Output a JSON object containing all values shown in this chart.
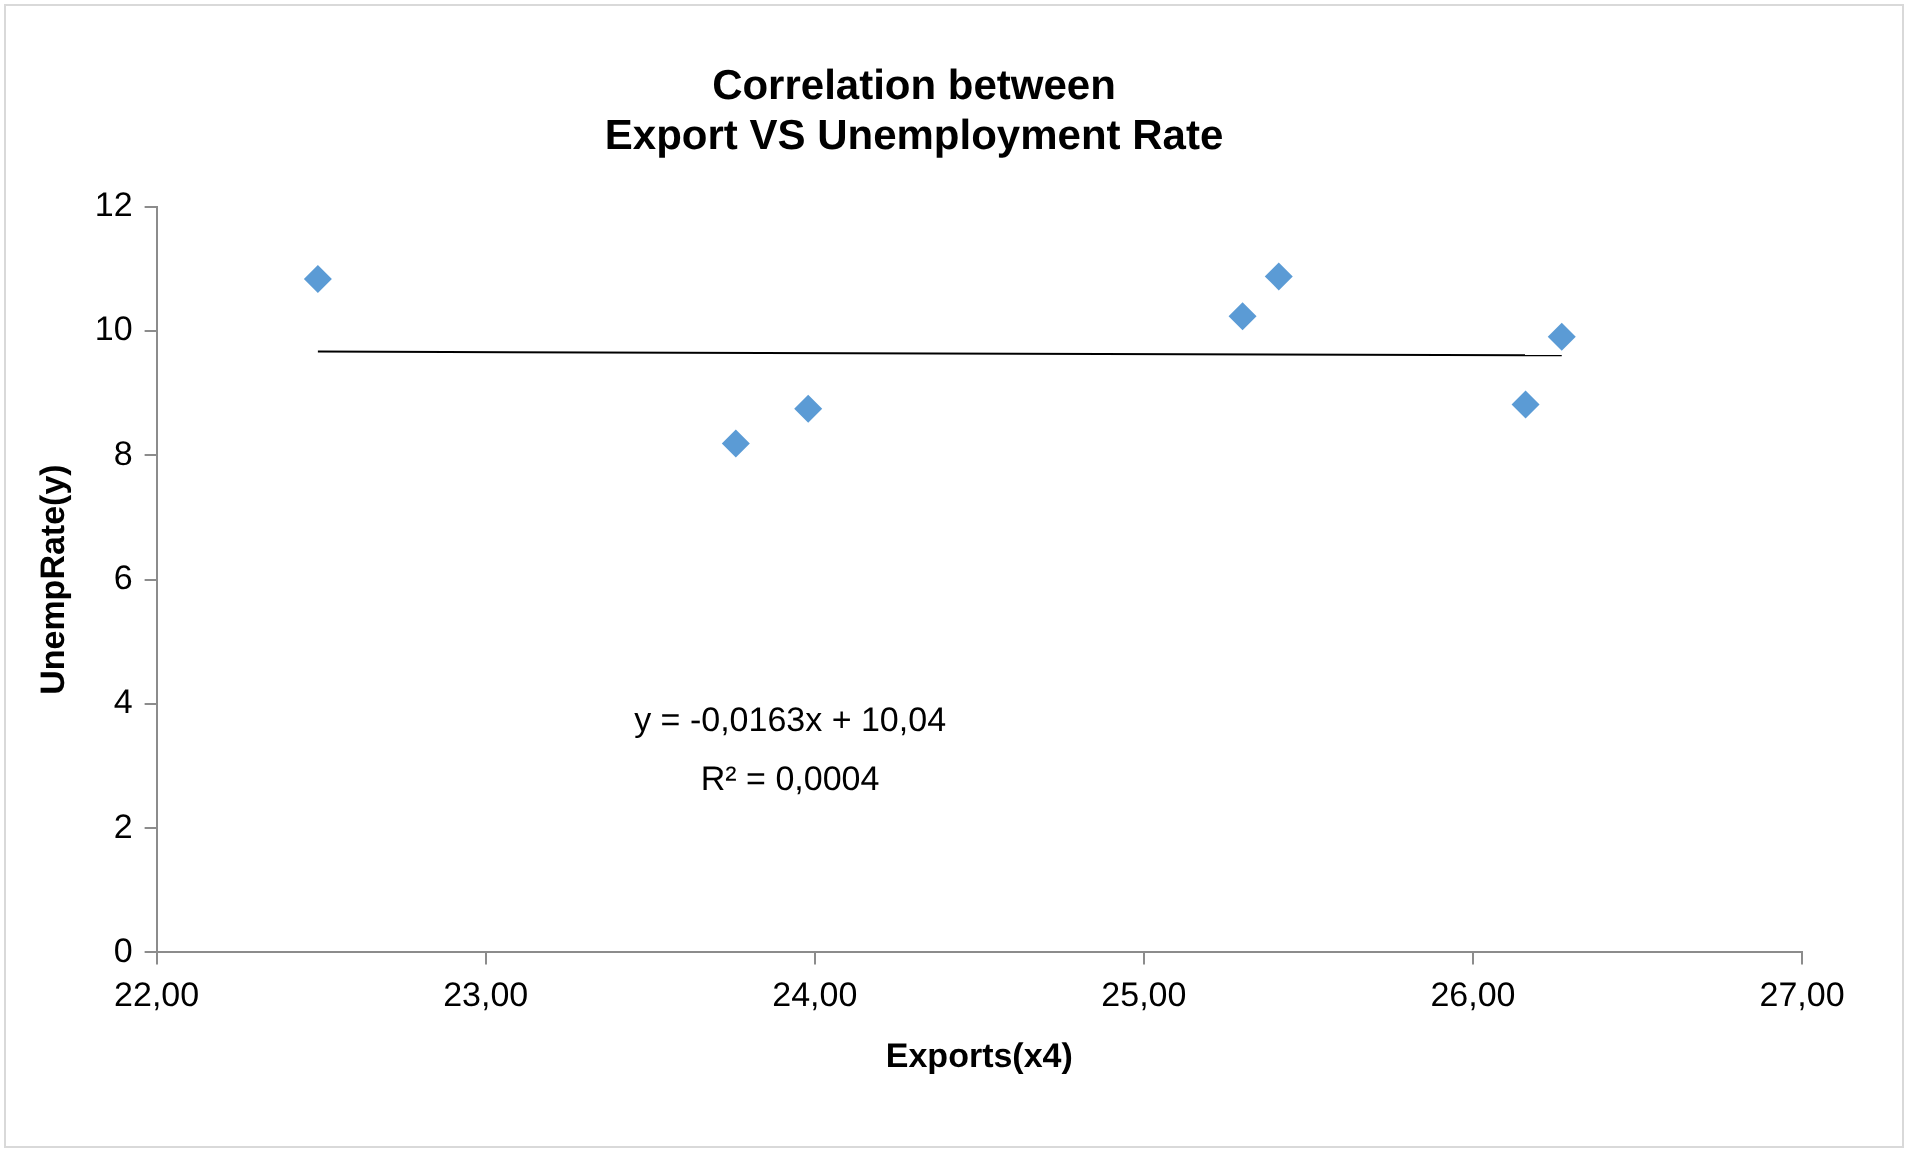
{
  "chart_data": {
    "type": "scatter",
    "title": [
      "Correlation between",
      "Export VS Unemployment Rate"
    ],
    "xlabel": "Exports(x4)",
    "ylabel": "UnempRate(y)",
    "series": [
      {
        "color": "#5b9bd5",
        "marker": "diamond",
        "x": [
          22.49,
          23.76,
          23.98,
          25.3,
          25.41,
          26.16,
          26.27
        ],
        "values": [
          10.84,
          8.19,
          8.75,
          10.24,
          10.88,
          8.82,
          9.91
        ]
      },
      {
        "type": "line",
        "color": "#000000",
        "marker": "none",
        "x": [
          22.49,
          26.27
        ],
        "values": [
          9.67,
          9.61
        ]
      }
    ],
    "xlim": [
      22,
      27
    ],
    "xticks": [
      {
        "value": 22,
        "label": "22,00"
      },
      {
        "value": 23,
        "label": "23,00"
      },
      {
        "value": 24,
        "label": "24,00"
      },
      {
        "value": 25,
        "label": "25,00"
      },
      {
        "value": 26,
        "label": "26,00"
      },
      {
        "value": 27,
        "label": "27,00"
      }
    ],
    "ylim": [
      0,
      12
    ],
    "yticks": [
      0,
      2,
      4,
      6,
      8,
      10,
      12
    ],
    "annotations": [
      "y = -0,0163x + 10,04",
      "R² = 0,0004"
    ],
    "grid": false,
    "legend": false
  }
}
